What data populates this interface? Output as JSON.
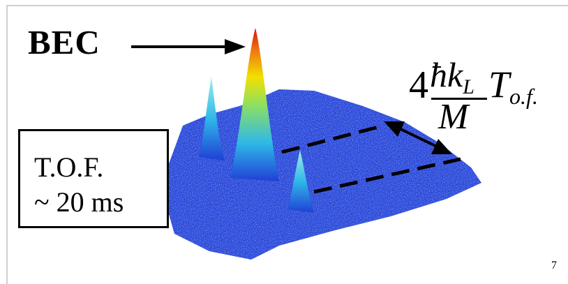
{
  "labels": {
    "bec": "BEC",
    "tof_line1": "T.O.F.",
    "tof_line2": "~ 20 ms",
    "page_number": "7"
  },
  "formula": {
    "coefficient": "4",
    "numerator": "ħk",
    "numerator_subscript": "L",
    "denominator": "M",
    "time_symbol": "T",
    "time_subscript": "o.f."
  },
  "colors": {
    "background_atoms": "#1f3fd6",
    "peak_top": "#e01010",
    "peak_mid": "#f2e000",
    "peak_low": "#30d0e0",
    "frame": "#cfcfcf"
  }
}
